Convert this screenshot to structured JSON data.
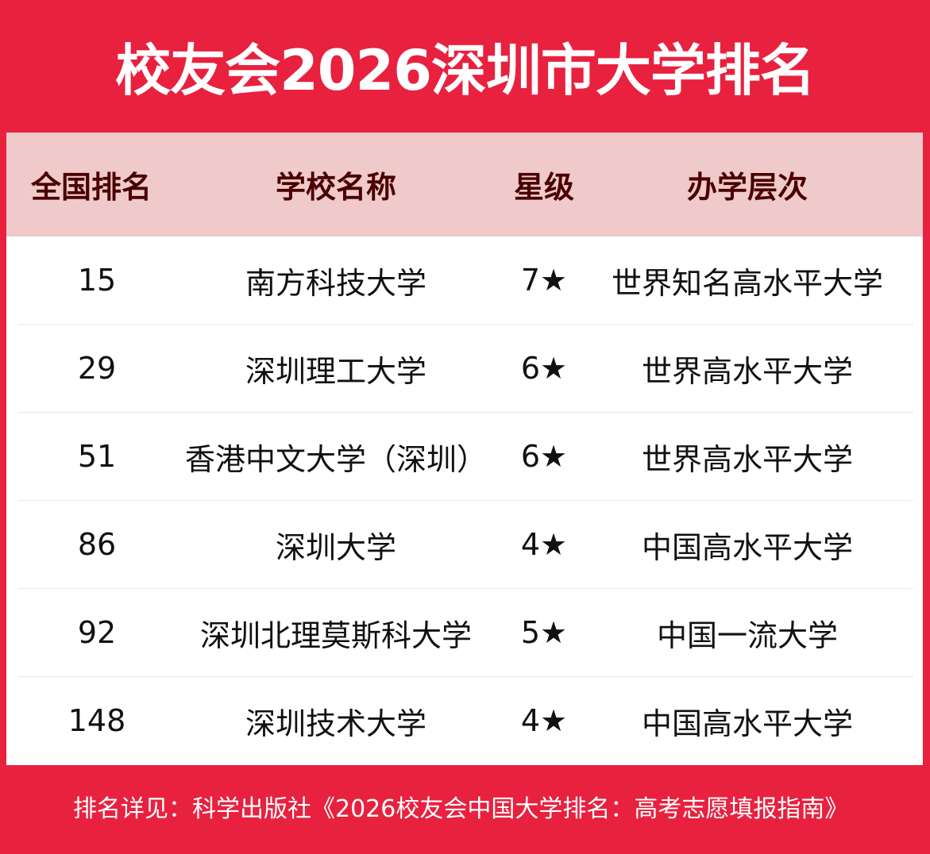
{
  "title": "校友会2026深圳市大学排名",
  "headers": [
    "全国排名",
    "学校名称",
    "星级",
    "办学层次"
  ],
  "rows": [
    {
      "rank": "15",
      "name": "南方科技大学",
      "stars": "7★",
      "level": "世界知名高水平大学"
    },
    {
      "rank": "29",
      "name": "深圳理工大学",
      "stars": "6★",
      "level": "世界高水平大学"
    },
    {
      "rank": "51",
      "name": "香港中文大学（深圳）",
      "stars": "6★",
      "level": "世界高水平大学"
    },
    {
      "rank": "86",
      "name": "深圳大学",
      "stars": "4★",
      "level": "中国高水平大学"
    },
    {
      "rank": "92",
      "name": "深圳北理莫斯科大学",
      "stars": "5★",
      "level": "中国一流大学"
    },
    {
      "rank": "148",
      "name": "深圳技术大学",
      "stars": "4★",
      "level": "中国高水平大学"
    }
  ],
  "footer": "排名详见：科学出版社《2026校友会中国大学排名：高考志愿填报指南》",
  "colors": {
    "brand_red": "#E8213F",
    "header_bg": "#F0CACB",
    "header_text": "#4A0000"
  }
}
